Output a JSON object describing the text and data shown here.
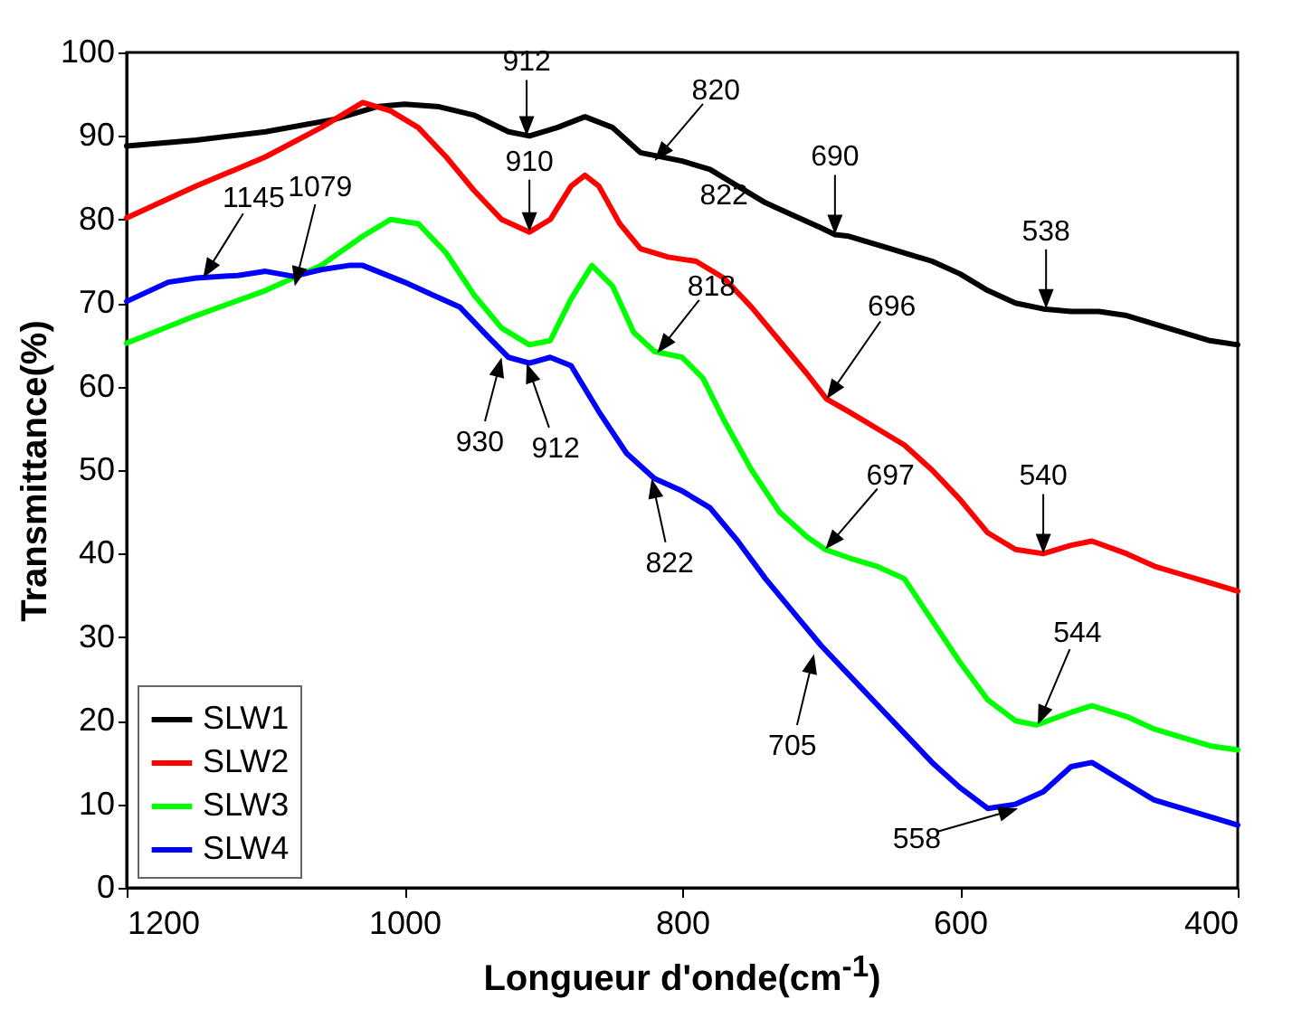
{
  "chart_data": {
    "type": "line",
    "xlabel": "Longueur d'onde(cm$^{-1}$)",
    "ylabel": "Transmittance(%)",
    "xlim": [
      1200,
      400
    ],
    "xticks": [
      {
        "value": 1200,
        "label": "1200"
      },
      {
        "value": 1000,
        "label": "1000"
      },
      800,
      600,
      400
    ],
    "ylim": [
      0,
      100
    ],
    "yticks": [
      0,
      10,
      20,
      30,
      40,
      50,
      60,
      70,
      80,
      90,
      100
    ],
    "grid": false,
    "legend": "bottom left",
    "line_style": "solid",
    "marker": "none",
    "series": [
      {
        "name": "SLW1",
        "color": "#000000",
        "x": [
          1200,
          1150,
          1100,
          1050,
          1020,
          1000,
          975,
          950,
          925,
          910,
          890,
          870,
          850,
          830,
          800,
          780,
          760,
          740,
          720,
          700,
          690,
          680,
          650,
          620,
          600,
          580,
          560,
          540,
          520,
          500,
          480,
          460,
          440,
          420,
          400
        ],
        "values": [
          88.8,
          89.5,
          90.5,
          92,
          93.5,
          93.8,
          93.5,
          92.5,
          90.5,
          90,
          91,
          92.3,
          91,
          88,
          87,
          86,
          84,
          82,
          80.5,
          79,
          78.2,
          78,
          76.5,
          75,
          73.5,
          71.5,
          70,
          69.3,
          69,
          69,
          68.5,
          67.5,
          66.5,
          65.5,
          65
        ]
      },
      {
        "name": "SLW2",
        "color": "#ff0000",
        "x": [
          1200,
          1150,
          1100,
          1060,
          1030,
          1010,
          990,
          970,
          950,
          930,
          910,
          895,
          880,
          870,
          860,
          845,
          830,
          810,
          790,
          770,
          750,
          730,
          710,
          696,
          680,
          660,
          640,
          620,
          600,
          580,
          560,
          540,
          520,
          505,
          480,
          460,
          440,
          420,
          400
        ],
        "values": [
          80.2,
          84,
          87.5,
          91,
          94,
          93,
          91,
          87.5,
          83.5,
          80,
          78.5,
          80,
          84,
          85.3,
          84,
          79.5,
          76.5,
          75.5,
          75,
          73,
          69.5,
          65.5,
          61.5,
          58.5,
          57,
          55,
          53,
          50,
          46.5,
          42.5,
          40.5,
          40,
          41,
          41.5,
          40,
          38.5,
          37.5,
          36.5,
          35.5
        ]
      },
      {
        "name": "SLW3",
        "color": "#00ff00",
        "x": [
          1200,
          1150,
          1100,
          1060,
          1030,
          1010,
          990,
          970,
          950,
          930,
          910,
          895,
          880,
          865,
          850,
          835,
          820,
          800,
          785,
          770,
          750,
          730,
          710,
          697,
          680,
          660,
          640,
          620,
          600,
          580,
          560,
          545,
          520,
          505,
          480,
          460,
          440,
          420,
          400
        ],
        "values": [
          65.2,
          68.5,
          71.5,
          74.5,
          78,
          80,
          79.5,
          76,
          71,
          67,
          65,
          65.5,
          70.5,
          74.5,
          72,
          66.5,
          64.2,
          63.5,
          61,
          56,
          50,
          45,
          42,
          40.5,
          39.5,
          38.5,
          37,
          32,
          27,
          22.5,
          20,
          19.5,
          21,
          21.8,
          20.5,
          19,
          18,
          17,
          16.5
        ]
      },
      {
        "name": "SLW4",
        "color": "#0000ff",
        "x": [
          1200,
          1170,
          1150,
          1120,
          1100,
          1080,
          1060,
          1040,
          1030,
          1000,
          980,
          960,
          940,
          925,
          910,
          895,
          880,
          860,
          840,
          820,
          800,
          780,
          760,
          740,
          720,
          700,
          680,
          660,
          640,
          620,
          600,
          580,
          560,
          540,
          520,
          505,
          480,
          460,
          440,
          420,
          400
        ],
        "values": [
          70.2,
          72.5,
          73,
          73.3,
          73.8,
          73.2,
          74,
          74.5,
          74.5,
          72.5,
          71,
          69.5,
          66,
          63.5,
          62.8,
          63.5,
          62.5,
          57,
          52,
          49,
          47.5,
          45.5,
          41.5,
          37,
          33,
          29,
          25.5,
          22,
          18.5,
          15,
          12,
          9.5,
          10,
          11.5,
          14.5,
          15,
          12.5,
          10.5,
          9.5,
          8.5,
          7.5
        ]
      }
    ],
    "annotations": [
      {
        "text": "912",
        "x": 912,
        "y": 90
      },
      {
        "text": "910",
        "x": 910,
        "y": 78.5
      },
      {
        "text": "820",
        "x": 820,
        "y": 87
      },
      {
        "text": "822",
        "x": 822,
        "y": 87
      },
      {
        "text": "690",
        "x": 690,
        "y": 78.2
      },
      {
        "text": "538",
        "x": 538,
        "y": 69.3
      },
      {
        "text": "1145",
        "x": 1145,
        "y": 73
      },
      {
        "text": "1079",
        "x": 1079,
        "y": 72
      },
      {
        "text": "930",
        "x": 930,
        "y": 63.5
      },
      {
        "text": "912",
        "x": 912,
        "y": 62.8
      },
      {
        "text": "818",
        "x": 818,
        "y": 64
      },
      {
        "text": "822",
        "x": 822,
        "y": 49
      },
      {
        "text": "696",
        "x": 696,
        "y": 58.5
      },
      {
        "text": "697",
        "x": 697,
        "y": 40.5
      },
      {
        "text": "540",
        "x": 540,
        "y": 40
      },
      {
        "text": "544",
        "x": 544,
        "y": 19.5
      },
      {
        "text": "705",
        "x": 705,
        "y": 28
      },
      {
        "text": "558",
        "x": 558,
        "y": 9.5
      }
    ]
  }
}
